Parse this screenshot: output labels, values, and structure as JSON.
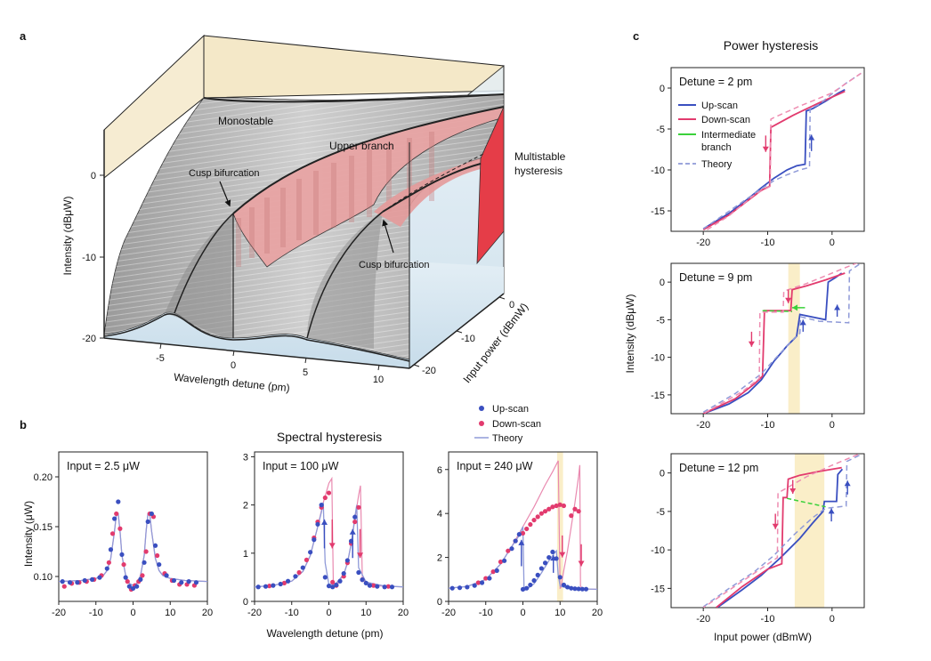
{
  "panel_a": {
    "label": "a",
    "ylabel": "Intensity (dBμW)",
    "yticks": [
      "0",
      "-10",
      "-20"
    ],
    "xlabel": "Wavelength detune (pm)",
    "xticks": [
      "-5",
      "0",
      "5",
      "10"
    ],
    "zlabel": "Input power (dBmW)",
    "zticks": [
      "0",
      "-10",
      "-20"
    ],
    "annotations": {
      "monostable": "Monostable",
      "upper_branch": "Upper branch",
      "cusp_left": "Cusp bifurcation",
      "cusp_right": "Cusp bifurcation",
      "multistable": "Multistable",
      "hysteresis": "hysteresis"
    },
    "colors": {
      "surface": "#b9b9b9",
      "upper": "#e9a2a2",
      "wall": "#f3e6c6",
      "floor": "#cfe3f0",
      "multistable": "#e8404a"
    }
  },
  "panel_b": {
    "label": "b",
    "title": "Spectral hysteresis",
    "ylabel": "Intensity (μW)",
    "xlabel": "Wavelength detune (pm)",
    "legend": {
      "up": "Up-scan",
      "down": "Down-scan",
      "theory": "Theory"
    }
  },
  "panel_c": {
    "label": "c",
    "title": "Power hysteresis",
    "ylabel": "Intensity (dBμW)",
    "xlabel": "Input power (dBmW)",
    "legend": {
      "up": "Up-scan",
      "down": "Down-scan",
      "intermediate_1": "Intermediate",
      "intermediate_2": "branch",
      "theory": "Theory"
    }
  },
  "colors": {
    "up": "#3a4fc0",
    "down": "#e23b6e",
    "theory": "#8f9ad8",
    "intermediate": "#3ad13a",
    "highlight": "#faeec8"
  },
  "chart_data": [
    {
      "type": "scatter",
      "id": "b1",
      "title": "Input = 2.5 μW",
      "xlim": [
        -20,
        20
      ],
      "ylim": [
        0.075,
        0.225
      ],
      "xticks": [
        -20,
        -10,
        0,
        10,
        20
      ],
      "yticks": [
        0.1,
        0.15,
        0.2
      ],
      "ytick_labels": [
        "0.10",
        "0.15",
        "0.20"
      ],
      "up_x": [
        -19,
        -17,
        -15,
        -13,
        -11,
        -9,
        -7,
        -6,
        -5,
        -4,
        -3,
        -2,
        -1,
        0,
        1,
        2,
        3,
        4,
        5,
        6,
        7,
        9,
        11,
        13,
        15,
        17
      ],
      "up_y": [
        0.095,
        0.094,
        0.094,
        0.096,
        0.097,
        0.099,
        0.108,
        0.127,
        0.158,
        0.175,
        0.122,
        0.099,
        0.09,
        0.088,
        0.09,
        0.097,
        0.114,
        0.155,
        0.163,
        0.131,
        0.112,
        0.101,
        0.096,
        0.094,
        0.095,
        0.094
      ],
      "down_x": [
        -18.5,
        -16.5,
        -14.5,
        -12.5,
        -10.5,
        -8.5,
        -6.5,
        -5.5,
        -4.5,
        -3.5,
        -2.5,
        -1.5,
        -0.5,
        0.5,
        1.5,
        2.5,
        3.5,
        4.5,
        5.5,
        6.5,
        8.5,
        10.5,
        12.5,
        14.5,
        16.5
      ],
      "down_y": [
        0.09,
        0.093,
        0.094,
        0.095,
        0.097,
        0.101,
        0.114,
        0.143,
        0.163,
        0.148,
        0.112,
        0.095,
        0.087,
        0.091,
        0.095,
        0.101,
        0.125,
        0.163,
        0.16,
        0.121,
        0.103,
        0.096,
        0.092,
        0.092,
        0.091
      ],
      "theory_x": [
        -20,
        -14,
        -10,
        -8,
        -7,
        -6,
        -5,
        -4.5,
        -4,
        -3.5,
        -3,
        -2,
        -1,
        0,
        1,
        2,
        3,
        3.5,
        4,
        4.5,
        5,
        6,
        7,
        8,
        10,
        14,
        20
      ],
      "theory_y": [
        0.095,
        0.096,
        0.098,
        0.101,
        0.106,
        0.118,
        0.145,
        0.162,
        0.163,
        0.145,
        0.121,
        0.101,
        0.093,
        0.091,
        0.093,
        0.101,
        0.121,
        0.145,
        0.163,
        0.162,
        0.145,
        0.118,
        0.106,
        0.101,
        0.098,
        0.096,
        0.095
      ]
    },
    {
      "type": "scatter",
      "id": "b2",
      "title": "Input = 100 μW",
      "xlim": [
        -20,
        20
      ],
      "ylim": [
        0,
        3.1
      ],
      "xticks": [
        -20,
        -10,
        0,
        10,
        20
      ],
      "yticks": [
        0,
        1,
        2,
        3
      ],
      "ytick_labels": [
        "0",
        "1",
        "2",
        "3"
      ],
      "up_x": [
        -19,
        -17,
        -15,
        -13,
        -11,
        -9,
        -7,
        -5,
        -4,
        -3,
        -2,
        -1,
        0,
        1,
        2,
        3,
        4,
        5,
        6,
        7,
        8,
        9,
        10,
        11,
        13,
        15,
        17
      ],
      "up_y": [
        0.3,
        0.31,
        0.33,
        0.36,
        0.42,
        0.52,
        0.7,
        1.02,
        1.28,
        1.6,
        2.0,
        0.5,
        0.32,
        0.3,
        0.34,
        0.42,
        0.58,
        0.85,
        1.25,
        1.75,
        0.6,
        0.45,
        0.38,
        0.33,
        0.31,
        0.3,
        0.3
      ],
      "down_x": [
        -16,
        -12,
        -8,
        -6,
        -4,
        -3,
        -2,
        -1,
        0,
        1,
        2,
        4,
        5,
        6,
        7,
        8,
        9,
        12,
        16
      ],
      "down_y": [
        0.32,
        0.38,
        0.6,
        0.86,
        1.32,
        1.65,
        1.95,
        2.15,
        2.25,
        0.4,
        0.33,
        0.52,
        0.8,
        1.2,
        1.65,
        1.95,
        0.45,
        0.33,
        0.31
      ],
      "theory_x": [
        -20,
        -15,
        -10,
        -7,
        -5,
        -3,
        -1.5,
        0,
        0.8,
        1.2,
        2.5,
        4,
        5,
        6,
        7,
        8,
        8.5,
        9,
        12,
        16,
        20
      ],
      "theory_y": [
        0.3,
        0.33,
        0.42,
        0.62,
        0.95,
        1.55,
        2.05,
        2.45,
        2.55,
        0.35,
        0.38,
        0.56,
        0.8,
        1.2,
        1.7,
        2.2,
        2.4,
        0.45,
        0.33,
        0.31,
        0.3
      ],
      "theory_up_x": [
        -20,
        -15,
        -10,
        -7,
        -5,
        -3,
        -2,
        -1.5,
        -1,
        0,
        2,
        4,
        5,
        6,
        6.5,
        7,
        7.5,
        8,
        10,
        15,
        20
      ],
      "theory_up_y": [
        0.3,
        0.33,
        0.42,
        0.62,
        0.95,
        1.55,
        1.85,
        2.05,
        0.8,
        0.35,
        0.38,
        0.56,
        0.8,
        1.2,
        1.45,
        1.75,
        2.0,
        0.7,
        0.4,
        0.32,
        0.3
      ],
      "arrows": [
        {
          "x": -1.2,
          "y1": 1.1,
          "y2": 1.7,
          "dir": "up"
        },
        {
          "x": 0.9,
          "y1": 1.7,
          "y2": 1.1,
          "dir": "down"
        },
        {
          "x": 6.4,
          "y1": 0.9,
          "y2": 1.5,
          "dir": "up"
        },
        {
          "x": 8.4,
          "y1": 1.5,
          "y2": 0.9,
          "dir": "down"
        }
      ]
    },
    {
      "type": "scatter",
      "id": "b3",
      "title": "Input = 240 μW",
      "xlim": [
        -20,
        20
      ],
      "ylim": [
        0,
        6.8
      ],
      "xticks": [
        -20,
        -10,
        0,
        10,
        20
      ],
      "yticks": [
        0,
        2,
        4,
        6
      ],
      "ytick_labels": [
        "0",
        "2",
        "4",
        "6"
      ],
      "highlight_x": [
        9.2,
        10.8
      ],
      "up_x": [
        -19,
        -17,
        -15,
        -13,
        -11,
        -9,
        -7,
        -5,
        -3,
        -2,
        -1,
        0,
        1,
        2,
        3,
        4,
        5,
        6,
        7,
        8,
        9,
        10,
        11,
        12,
        13,
        14,
        15,
        16,
        17
      ],
      "up_y": [
        0.6,
        0.62,
        0.65,
        0.72,
        0.85,
        1.05,
        1.4,
        1.85,
        2.4,
        2.75,
        3.05,
        0.55,
        0.6,
        0.75,
        0.95,
        1.2,
        1.5,
        1.75,
        2.0,
        2.25,
        1.95,
        1.1,
        0.75,
        0.65,
        0.6,
        0.58,
        0.57,
        0.56,
        0.56
      ],
      "down_x": [
        -12,
        -10,
        -8,
        -6,
        -4,
        -2,
        0,
        1,
        2,
        3,
        4,
        5,
        6,
        7,
        8,
        9,
        10,
        11,
        13,
        14,
        15
      ],
      "down_y": [
        0.85,
        1.05,
        1.35,
        1.8,
        2.3,
        2.75,
        3.1,
        3.3,
        3.5,
        3.7,
        3.85,
        4.0,
        4.1,
        4.2,
        4.3,
        4.35,
        4.4,
        4.35,
        3.9,
        4.2,
        4.1
      ],
      "theory_x": [
        -20,
        -15,
        -10,
        -6,
        -3,
        0,
        3,
        6,
        8,
        9.5,
        10,
        10.2,
        11,
        12,
        13,
        14,
        15,
        15.3,
        15.5,
        16,
        18,
        20
      ],
      "theory_y": [
        0.6,
        0.68,
        1.0,
        1.7,
        2.5,
        3.4,
        4.3,
        5.3,
        5.9,
        6.4,
        0.6,
        0.62,
        1.4,
        2.3,
        3.4,
        4.5,
        5.7,
        6.2,
        0.7,
        0.6,
        0.56,
        0.55
      ],
      "theory_up_x": [
        -20,
        -15,
        -10,
        -6,
        -3,
        -1,
        0,
        0.3,
        1,
        3,
        5,
        7,
        8.5,
        9,
        9.5,
        10,
        12,
        15,
        20
      ],
      "theory_up_y": [
        0.6,
        0.68,
        1.0,
        1.7,
        2.5,
        3.0,
        3.4,
        0.5,
        0.55,
        0.8,
        1.3,
        1.85,
        2.2,
        2.3,
        1.2,
        0.7,
        0.6,
        0.57,
        0.55
      ],
      "arrows": [
        {
          "x": -0.4,
          "y1": 1.6,
          "y2": 2.8,
          "dir": "up"
        },
        {
          "x": 8.2,
          "y1": 1.3,
          "y2": 2.1,
          "dir": "up"
        },
        {
          "x": 10.6,
          "y1": 3.0,
          "y2": 2.0,
          "dir": "down"
        },
        {
          "x": 15.7,
          "y1": 2.6,
          "y2": 1.6,
          "dir": "down"
        }
      ]
    },
    {
      "type": "line",
      "id": "c1",
      "title": "Detune = 2 pm",
      "xlim": [
        -25,
        5
      ],
      "ylim": [
        -17.5,
        2.5
      ],
      "xticks": [
        -20,
        -10,
        0
      ],
      "yticks": [
        0,
        -5,
        -10,
        -15
      ],
      "ytick_labels": [
        "0",
        "-5",
        "-10",
        "-15"
      ],
      "series": [
        {
          "name": "up",
          "x": [
            -20,
            -16,
            -13,
            -11,
            -9,
            -7,
            -5.5,
            -4.2,
            -4.0,
            -3.0,
            -1,
            1,
            2
          ],
          "y": [
            -17.2,
            -15.3,
            -13.5,
            -12.2,
            -11.0,
            -10.0,
            -9.5,
            -9.3,
            -2.8,
            -2.5,
            -1.6,
            -0.6,
            -0.2
          ]
        },
        {
          "name": "down",
          "x": [
            2,
            -2,
            -6,
            -9.5,
            -9.7,
            -11,
            -13,
            -16,
            -20
          ],
          "y": [
            -0.4,
            -1.8,
            -3.3,
            -4.8,
            -12.0,
            -12.5,
            -13.7,
            -15.5,
            -17.3
          ]
        },
        {
          "name": "theory",
          "x": [
            -20,
            -15,
            -11,
            -9,
            -7,
            -5,
            -3.5,
            -3.4,
            -2,
            0,
            2,
            4.5
          ],
          "y": [
            -17.2,
            -14.5,
            -12.3,
            -11.3,
            -10.6,
            -10.0,
            -9.7,
            -2.5,
            -2.0,
            -0.7,
            0.5,
            1.8
          ]
        },
        {
          "name": "theory_down",
          "x": [
            4.5,
            0,
            -5,
            -9,
            -9.5,
            -9.6,
            -12,
            -16,
            -20
          ],
          "y": [
            1.8,
            -0.6,
            -2.2,
            -3.6,
            -3.8,
            -12.0,
            -13.0,
            -15.6,
            -17.6
          ]
        }
      ],
      "arrows": [
        {
          "x": -3.2,
          "y1": -7.7,
          "y2": -5.7,
          "dir": "up"
        },
        {
          "x": -10.3,
          "y1": -5.8,
          "y2": -7.8,
          "dir": "down"
        }
      ]
    },
    {
      "type": "line",
      "id": "c2",
      "title": "Detune = 9 pm",
      "xlim": [
        -25,
        5
      ],
      "ylim": [
        -17.5,
        2.5
      ],
      "xticks": [
        -20,
        -10,
        0
      ],
      "yticks": [
        0,
        -5,
        -10,
        -15
      ],
      "ytick_labels": [
        "0",
        "-5",
        "-10",
        "-15"
      ],
      "highlight_x": [
        -6.8,
        -5.0
      ],
      "series": [
        {
          "name": "up",
          "x": [
            -20,
            -16,
            -13,
            -11,
            -9,
            -7,
            -5.5,
            -5.0,
            -1.0,
            -0.6,
            0.5,
            1.5
          ],
          "y": [
            -17.5,
            -16.2,
            -14.7,
            -13.0,
            -10.5,
            -8.5,
            -7.2,
            -4.3,
            -5.0,
            0.0,
            0.6,
            1.2
          ]
        },
        {
          "name": "down",
          "x": [
            2,
            -1,
            -4,
            -6.2,
            -6.4,
            -10.5,
            -10.8,
            -12,
            -15,
            -20
          ],
          "y": [
            1.2,
            0.3,
            -0.5,
            -1.0,
            -3.8,
            -3.8,
            -12.5,
            -13.5,
            -15.5,
            -17.5
          ]
        },
        {
          "name": "intermediate",
          "x": [
            -10.8,
            -6.2
          ],
          "y": [
            -3.8,
            -3.9
          ]
        },
        {
          "name": "theory",
          "x": [
            -20,
            -15,
            -11,
            -8,
            -6,
            -5.0,
            -4.9,
            -2,
            2.6,
            2.7,
            5
          ],
          "y": [
            -17.3,
            -14.8,
            -12.2,
            -9.4,
            -7.6,
            -6.8,
            -4.6,
            -5.2,
            -5.4,
            1.5,
            2.8
          ]
        },
        {
          "name": "theory_down",
          "x": [
            4,
            0,
            -4,
            -7.5,
            -7.6,
            -11.2,
            -11.3,
            -14,
            -20
          ],
          "y": [
            2.6,
            1.2,
            -0.2,
            -1.2,
            -4.0,
            -4.0,
            -12.8,
            -14.6,
            -17.5
          ]
        }
      ],
      "arrows": [
        {
          "x": 0.8,
          "y1": -4.6,
          "y2": -3.0,
          "dir": "up"
        },
        {
          "x": -4.5,
          "y1": -6.6,
          "y2": -5.0,
          "dir": "up"
        },
        {
          "x": -6.8,
          "y1": -1.0,
          "y2": -2.8,
          "dir": "down"
        },
        {
          "x": -12.5,
          "y1": -6.6,
          "y2": -8.6,
          "dir": "down"
        }
      ],
      "green_arrow": {
        "x1": -4.2,
        "x2": -6.2,
        "y": -3.4
      }
    },
    {
      "type": "line",
      "id": "c3",
      "title": "Detune = 12 pm",
      "xlim": [
        -25,
        5
      ],
      "ylim": [
        -17.5,
        2.5
      ],
      "xticks": [
        -20,
        -10,
        0
      ],
      "yticks": [
        0,
        -5,
        -10,
        -15
      ],
      "ytick_labels": [
        "0",
        "-5",
        "-10",
        "-15"
      ],
      "highlight_x": [
        -5.8,
        -1.2
      ],
      "series": [
        {
          "name": "up",
          "x": [
            -18,
            -14,
            -11,
            -8,
            -5,
            -3,
            -1.4,
            -1.2,
            0.7,
            0.9,
            1.6
          ],
          "y": [
            -17.6,
            -15.2,
            -13.3,
            -11.0,
            -8.5,
            -6.5,
            -5.0,
            -3.7,
            -3.7,
            -0.2,
            0.5
          ]
        },
        {
          "name": "down",
          "x": [
            1.5,
            -2,
            -5,
            -6.8,
            -7.0,
            -7.6,
            -7.8,
            -10,
            -14,
            -18
          ],
          "y": [
            0.7,
            0.2,
            -0.3,
            -0.8,
            -3.2,
            -3.2,
            -11.8,
            -12.5,
            -14.8,
            -17.5
          ]
        },
        {
          "name": "intermediate",
          "x": [
            -7.0,
            -1.0
          ],
          "y": [
            -3.3,
            -4.4
          ]
        },
        {
          "name": "theory",
          "x": [
            -20,
            -16,
            -12,
            -9,
            -6,
            -3,
            -1,
            2.2,
            2.3,
            4.5
          ],
          "y": [
            -17.4,
            -15.0,
            -12.8,
            -10.7,
            -8.1,
            -5.8,
            -4.6,
            -4.3,
            1.5,
            2.4
          ]
        },
        {
          "name": "theory_down",
          "x": [
            4,
            0,
            -4,
            -8.4,
            -8.5,
            -20
          ],
          "y": [
            2.4,
            1.0,
            -0.5,
            -2.6,
            -11.0,
            -17.5
          ]
        }
      ],
      "arrows": [
        {
          "x": 2.4,
          "y1": -2.8,
          "y2": -1.0,
          "dir": "up"
        },
        {
          "x": -0.1,
          "y1": -6.3,
          "y2": -4.6,
          "dir": "up"
        },
        {
          "x": -6.1,
          "y1": -0.9,
          "y2": -2.7,
          "dir": "down"
        },
        {
          "x": -8.8,
          "y1": -5.3,
          "y2": -7.3,
          "dir": "down"
        }
      ]
    }
  ]
}
